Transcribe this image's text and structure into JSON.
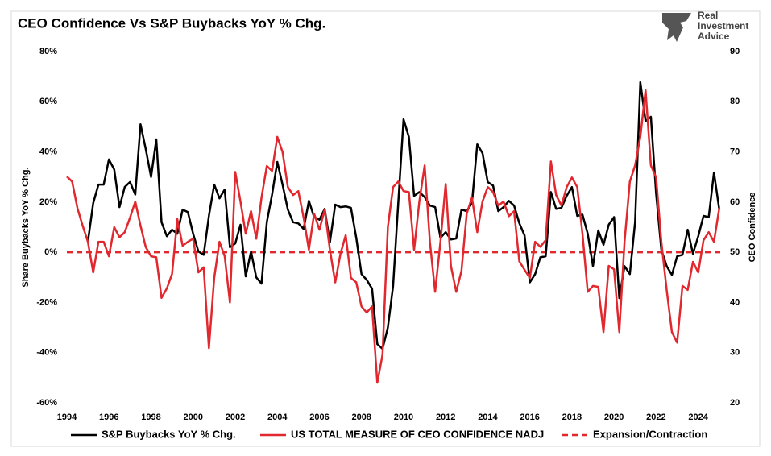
{
  "chart_data": {
    "type": "line",
    "title": "CEO Confidence Vs S&P Buybacks YoY % Chg.",
    "brand": [
      "Real",
      "Investment",
      "Advice"
    ],
    "ylabel": "Share Buybacks YoY % Chg.",
    "y2label": "CEO Confidence",
    "x": [
      1994,
      1994.25,
      1994.5,
      1994.75,
      1995,
      1995.25,
      1995.5,
      1995.75,
      1996,
      1996.25,
      1996.5,
      1996.75,
      1997,
      1997.25,
      1997.5,
      1997.75,
      1998,
      1998.25,
      1998.5,
      1998.75,
      1999,
      1999.25,
      1999.5,
      1999.75,
      2000,
      2000.25,
      2000.5,
      2000.75,
      2001,
      2001.25,
      2001.5,
      2001.75,
      2002,
      2002.25,
      2002.5,
      2002.75,
      2003,
      2003.25,
      2003.5,
      2003.75,
      2004,
      2004.25,
      2004.5,
      2004.75,
      2005,
      2005.25,
      2005.5,
      2005.75,
      2006,
      2006.25,
      2006.5,
      2006.75,
      2007,
      2007.25,
      2007.5,
      2007.75,
      2008,
      2008.25,
      2008.5,
      2008.75,
      2009,
      2009.25,
      2009.5,
      2009.75,
      2010,
      2010.25,
      2010.5,
      2010.75,
      2011,
      2011.25,
      2011.5,
      2011.75,
      2012,
      2012.25,
      2012.5,
      2012.75,
      2013,
      2013.25,
      2013.5,
      2013.75,
      2014,
      2014.25,
      2014.5,
      2014.75,
      2015,
      2015.25,
      2015.5,
      2015.75,
      2016,
      2016.25,
      2016.5,
      2016.75,
      2017,
      2017.25,
      2017.5,
      2017.75,
      2018,
      2018.25,
      2018.5,
      2018.75,
      2019,
      2019.25,
      2019.5,
      2019.75,
      2020,
      2020.25,
      2020.5,
      2020.75,
      2021,
      2021.25,
      2021.5,
      2021.75,
      2022,
      2022.25,
      2022.5,
      2022.75,
      2023,
      2023.25,
      2023.5,
      2023.75,
      2024,
      2024.25,
      2024.5,
      2024.75,
      2025
    ],
    "series": [
      {
        "name": "S&P Buybacks YoY % Chg.",
        "color": "#000000",
        "axis": "y",
        "values": [
          null,
          null,
          null,
          null,
          4.2,
          19.6,
          27,
          27,
          37,
          33,
          18,
          26,
          28,
          23,
          51,
          41,
          30,
          45,
          12,
          6.4,
          9,
          7.4,
          17,
          16,
          7.4,
          0.3,
          -1,
          14.5,
          27,
          21.5,
          25,
          2,
          3.5,
          11,
          -9.6,
          0.3,
          -10,
          -12.5,
          12,
          23,
          36,
          27,
          17,
          12,
          11.5,
          9.3,
          20.5,
          14,
          13,
          17.3,
          4,
          19,
          18,
          18.3,
          17.7,
          5.8,
          -8.7,
          -11,
          -14.5,
          -36.6,
          -38.5,
          -30,
          -13.5,
          20,
          53,
          46,
          22.5,
          24,
          22,
          18.6,
          18,
          5.8,
          8,
          5.1,
          5.5,
          17,
          16.4,
          19.6,
          43,
          39.5,
          28,
          26.6,
          16.4,
          18,
          20.5,
          18.6,
          11.6,
          6.7,
          -12,
          -8.7,
          -2,
          -1.6,
          24,
          17.3,
          17.7,
          22.5,
          26,
          14.5,
          15,
          7.4,
          -5.5,
          8.7,
          3,
          11,
          14,
          -18.3,
          -5.5,
          -8.7,
          12,
          67.8,
          52.3,
          54,
          23.4,
          1,
          -5.5,
          -9,
          -1.6,
          -1,
          9,
          -0.6,
          6.4,
          14.5,
          14,
          31.8,
          17
        ]
      },
      {
        "name": "US TOTAL MEASURE OF CEO CONFIDENCE NADJ",
        "color": "#e0282e",
        "axis": "y2",
        "values": [
          65.1,
          64.1,
          58.8,
          55.3,
          52.1,
          46,
          52.1,
          52.1,
          49.2,
          55,
          53,
          54,
          56.9,
          60.1,
          55.3,
          51,
          49.2,
          49,
          40.9,
          42.8,
          45.7,
          56.6,
          51.3,
          52.1,
          52.7,
          46,
          47,
          30.9,
          44.9,
          52.1,
          49.2,
          40,
          66,
          60.1,
          53.7,
          58.2,
          52.7,
          60.9,
          67.2,
          66.2,
          73,
          70,
          63,
          61.4,
          62.2,
          56.9,
          50.5,
          57.7,
          54.5,
          58.5,
          50.5,
          44,
          49.7,
          53.4,
          44.9,
          44,
          39.2,
          38,
          39.2,
          24,
          29.6,
          55,
          63,
          64.1,
          62.2,
          62,
          50.5,
          60.1,
          67.3,
          52.1,
          42.1,
          52.1,
          63.6,
          47.3,
          42.1,
          46.3,
          57.7,
          60.9,
          54,
          60.1,
          63,
          62,
          59.3,
          60.1,
          57.2,
          58.2,
          48.2,
          46.5,
          44.9,
          52.1,
          51.1,
          52.4,
          68.1,
          61.4,
          59.3,
          63,
          64.9,
          63,
          53.7,
          42.1,
          43.3,
          43.1,
          34.1,
          47.3,
          46.6,
          34.1,
          52.1,
          64.1,
          67.3,
          73,
          82.3,
          67.3,
          64.9,
          52.1,
          42.5,
          34.1,
          32,
          43.3,
          42.5,
          48.1,
          46,
          52.4,
          54,
          52.1,
          58.8
        ]
      }
    ],
    "reference_line": {
      "name": "Expansion/Contraction",
      "value": 0,
      "color": "#e0282e",
      "axis": "y"
    },
    "xlim": [
      1994,
      2025.2
    ],
    "xticks": [
      1994,
      1996,
      1998,
      2000,
      2002,
      2004,
      2006,
      2008,
      2010,
      2012,
      2014,
      2016,
      2018,
      2020,
      2022,
      2024
    ],
    "ylim": [
      -60,
      80
    ],
    "yticks": [
      {
        "value": -60,
        "label": "-60%"
      },
      {
        "value": -40,
        "label": "-40%"
      },
      {
        "value": -20,
        "label": "-20%"
      },
      {
        "value": 0,
        "label": "0%"
      },
      {
        "value": 20,
        "label": "20%"
      },
      {
        "value": 40,
        "label": "40%"
      },
      {
        "value": 60,
        "label": "60%"
      },
      {
        "value": 80,
        "label": "80%"
      }
    ],
    "y2lim": [
      20,
      90
    ],
    "y2ticks": [
      20,
      30,
      40,
      50,
      60,
      70,
      80,
      90
    ],
    "legend": "bottom"
  }
}
